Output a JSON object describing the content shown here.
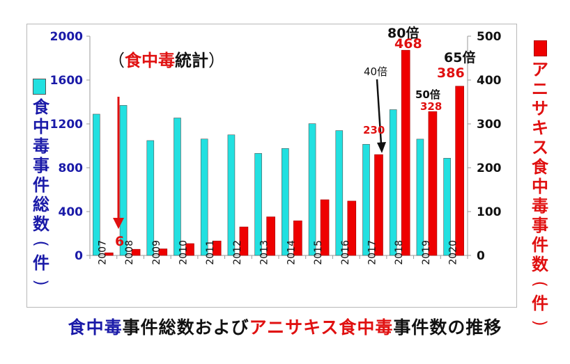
{
  "chart_data": {
    "type": "bar",
    "categories": [
      "2007",
      "2008",
      "2009",
      "2010",
      "2011",
      "2012",
      "2013",
      "2014",
      "2015",
      "2016",
      "2017",
      "2018",
      "2019",
      "2020"
    ],
    "series": [
      {
        "name": "食中毒事件総数(件)",
        "axis": "left",
        "color": "#22e0e0",
        "values": [
          1289,
          1369,
          1048,
          1254,
          1062,
          1100,
          931,
          976,
          1202,
          1139,
          1014,
          1330,
          1061,
          887
        ]
      },
      {
        "name": "アニサキス食中毒事件数(件)",
        "axis": "right",
        "color": "#ee0000",
        "values": [
          6,
          14,
          15,
          27,
          33,
          65,
          88,
          79,
          127,
          124,
          230,
          468,
          328,
          386
        ]
      }
    ],
    "left_axis": {
      "label": "食中毒事件総数(件)",
      "ticks": [
        0,
        400,
        800,
        1200,
        1600,
        2000
      ],
      "range": [
        0,
        2000
      ],
      "color": "#1a1aa8"
    },
    "right_axis": {
      "label": "アニサキス食中毒事件数(件)",
      "ticks": [
        0,
        100,
        200,
        300,
        400,
        500
      ],
      "range": [
        0,
        500
      ],
      "color": "#111111"
    },
    "annotations": {
      "stat_label_paren_open": "（",
      "stat_label_red": "食中毒",
      "stat_label_rest": "統計",
      "stat_label_paren_close": "）",
      "value_2007": "6",
      "value_2017": "230",
      "value_2018": "468",
      "value_2019": "328",
      "value_2020": "386",
      "mult_2017": "40倍",
      "mult_2018": "80倍",
      "mult_2019": "50倍",
      "mult_2020": "65倍"
    },
    "title_parts": [
      {
        "text": "食中毒",
        "color": "blue"
      },
      {
        "text": "事件総数および",
        "color": "black"
      },
      {
        "text": "アニサキス食中毒",
        "color": "red"
      },
      {
        "text": "事件数の推移",
        "color": "black"
      }
    ],
    "grid": false,
    "legend": "left and right vertical labels with colored squares"
  }
}
